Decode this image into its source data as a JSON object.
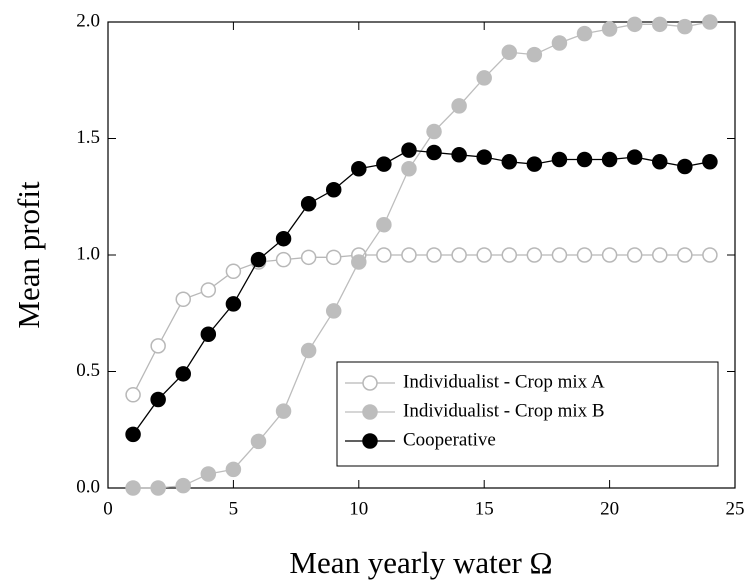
{
  "chart_data": {
    "type": "line",
    "x_label": "Mean yearly water Ω",
    "y_label": "Mean profit",
    "x": [
      1,
      2,
      3,
      4,
      5,
      6,
      7,
      8,
      9,
      10,
      11,
      12,
      13,
      14,
      15,
      16,
      17,
      18,
      19,
      20,
      21,
      22,
      23,
      24
    ],
    "series": [
      {
        "name": "Individualist - Crop mix A",
        "color": "#b8b8b8",
        "marker": "open",
        "values": [
          0.4,
          0.61,
          0.81,
          0.85,
          0.93,
          0.97,
          0.98,
          0.99,
          0.99,
          1.0,
          1.0,
          1.0,
          1.0,
          1.0,
          1.0,
          1.0,
          1.0,
          1.0,
          1.0,
          1.0,
          1.0,
          1.0,
          1.0,
          1.0
        ]
      },
      {
        "name": "Individualist - Crop mix B",
        "color": "#bdbdbd",
        "marker": "filled",
        "values": [
          0,
          0,
          0.01,
          0.06,
          0.08,
          0.2,
          0.33,
          0.59,
          0.76,
          0.97,
          1.13,
          1.37,
          1.53,
          1.64,
          1.76,
          1.87,
          1.86,
          1.91,
          1.95,
          1.97,
          1.99,
          1.99,
          1.98,
          2.0
        ]
      },
      {
        "name": "Cooperative",
        "color": "#000000",
        "marker": "filled",
        "values": [
          0.23,
          0.38,
          0.49,
          0.66,
          0.79,
          0.98,
          1.07,
          1.22,
          1.28,
          1.37,
          1.39,
          1.45,
          1.44,
          1.43,
          1.42,
          1.4,
          1.39,
          1.41,
          1.41,
          1.41,
          1.42,
          1.4,
          1.38,
          1.4
        ]
      }
    ],
    "xlim": [
      0,
      25
    ],
    "xticks": [
      0,
      5,
      10,
      15,
      20,
      25
    ],
    "ylim": [
      0,
      2
    ],
    "yticks": [
      {
        "value": 0,
        "label": "0.0"
      },
      0.5,
      {
        "value": 1,
        "label": "1.0"
      },
      1.5,
      {
        "value": 2,
        "label": "2.0"
      }
    ],
    "legend": "lower right"
  }
}
